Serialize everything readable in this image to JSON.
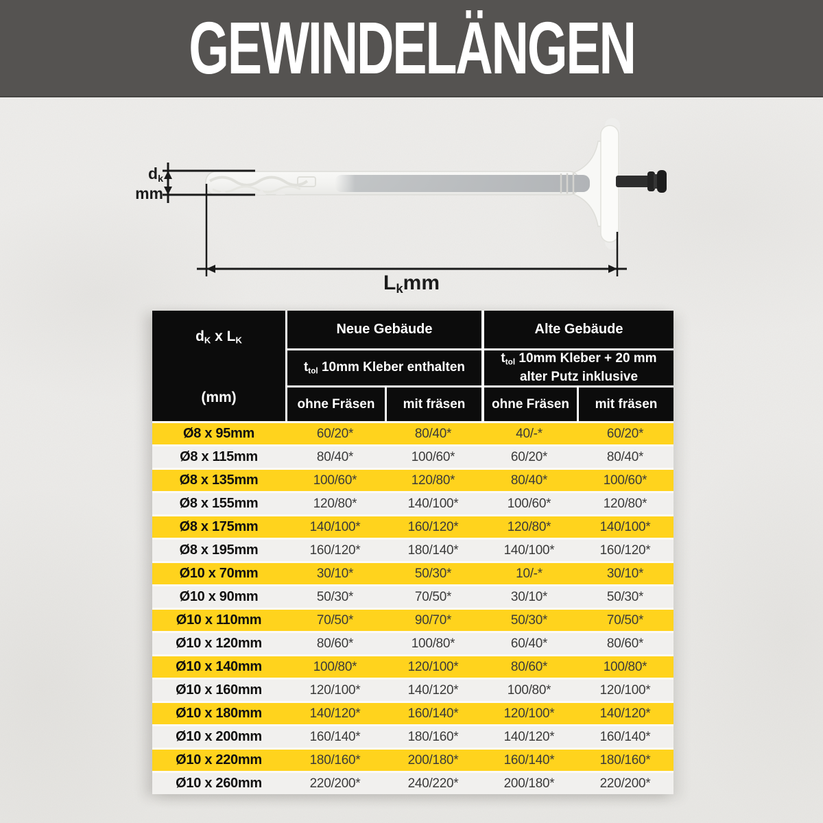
{
  "banner": {
    "title": "GEWINDELÄNGEN"
  },
  "diagram": {
    "dk": {
      "main": "d",
      "sub": "k",
      "unit": "mm"
    },
    "lk": {
      "main": "L",
      "sub": "k",
      "unit": "mm"
    },
    "illustration": "insulation-anchor-with-plate-and-hammer-pin"
  },
  "table": {
    "size_header": {
      "d": "d",
      "d_sub": "K",
      "x_sep": " x ",
      "l": "L",
      "l_sub": "K",
      "unit": "(mm)"
    },
    "groups": {
      "neue": {
        "title": "Neue Gebäude",
        "t": "t",
        "t_sub": "tol",
        "rest": " 10mm Kleber enthalten"
      },
      "alte": {
        "title": "Alte Gebäude",
        "t": "t",
        "t_sub": "tol",
        "rest_line1": " 10mm Kleber + 20 mm",
        "line2": "alter Putz inklusive"
      }
    },
    "subcols": [
      "ohne Fräsen",
      "mit fräsen",
      "ohne Fräsen",
      "mit fräsen"
    ],
    "rows": [
      {
        "size": "Ø8 x 95mm",
        "values": [
          "60/20*",
          "80/40*",
          "40/-*",
          "60/20*"
        ]
      },
      {
        "size": "Ø8 x 115mm",
        "values": [
          "80/40*",
          "100/60*",
          "60/20*",
          "80/40*"
        ]
      },
      {
        "size": "Ø8 x 135mm",
        "values": [
          "100/60*",
          "120/80*",
          "80/40*",
          "100/60*"
        ]
      },
      {
        "size": "Ø8 x 155mm",
        "values": [
          "120/80*",
          "140/100*",
          "100/60*",
          "120/80*"
        ]
      },
      {
        "size": "Ø8 x 175mm",
        "values": [
          "140/100*",
          "160/120*",
          "120/80*",
          "140/100*"
        ]
      },
      {
        "size": "Ø8 x 195mm",
        "values": [
          "160/120*",
          "180/140*",
          "140/100*",
          "160/120*"
        ]
      },
      {
        "size": "Ø10 x 70mm",
        "values": [
          "30/10*",
          "50/30*",
          "10/-*",
          "30/10*"
        ]
      },
      {
        "size": "Ø10 x 90mm",
        "values": [
          "50/30*",
          "70/50*",
          "30/10*",
          "50/30*"
        ]
      },
      {
        "size": "Ø10 x 110mm",
        "values": [
          "70/50*",
          "90/70*",
          "50/30*",
          "70/50*"
        ]
      },
      {
        "size": "Ø10 x 120mm",
        "values": [
          "80/60*",
          "100/80*",
          "60/40*",
          "80/60*"
        ]
      },
      {
        "size": "Ø10 x 140mm",
        "values": [
          "100/80*",
          "120/100*",
          "80/60*",
          "100/80*"
        ]
      },
      {
        "size": "Ø10 x 160mm",
        "values": [
          "120/100*",
          "140/120*",
          "100/80*",
          "120/100*"
        ]
      },
      {
        "size": "Ø10 x 180mm",
        "values": [
          "140/120*",
          "160/140*",
          "120/100*",
          "140/120*"
        ]
      },
      {
        "size": "Ø10 x 200mm",
        "values": [
          "160/140*",
          "180/160*",
          "140/120*",
          "160/140*"
        ]
      },
      {
        "size": "Ø10 x 220mm",
        "values": [
          "180/160*",
          "200/180*",
          "160/140*",
          "180/160*"
        ]
      },
      {
        "size": "Ø10 x 260mm",
        "values": [
          "220/200*",
          "240/220*",
          "200/180*",
          "220/200*"
        ]
      }
    ]
  },
  "colors": {
    "row_yellow": "#ffd31d",
    "row_light": "#f1f0ee",
    "grid_white": "#fbfaf8",
    "header_bg": "#0c0c0c",
    "banner_bg": "#555351",
    "dim_line": "#1a1a1a"
  }
}
